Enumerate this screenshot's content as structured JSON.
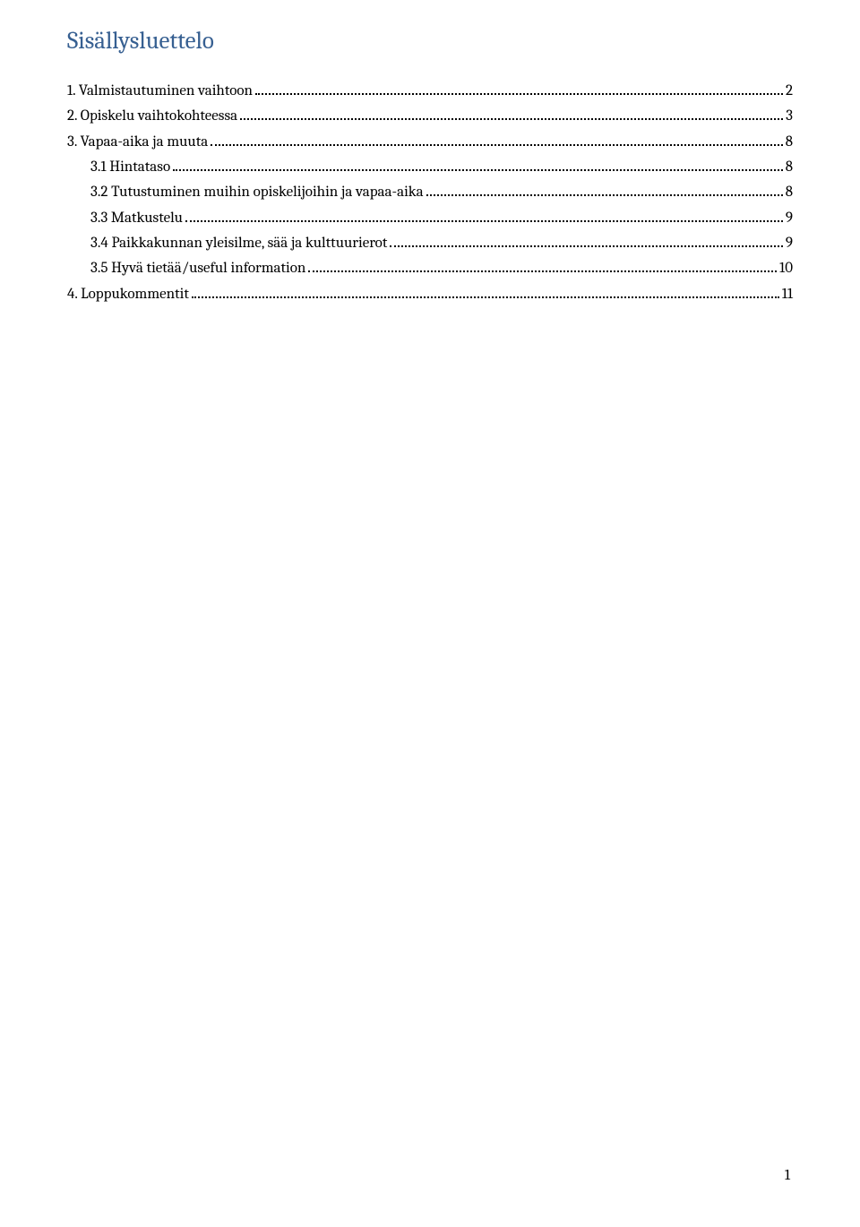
{
  "title": "Sisällysluettelo",
  "toc": [
    {
      "label": "1. Valmistautuminen vaihtoon",
      "page": "2",
      "indent": false
    },
    {
      "label": "2. Opiskelu vaihtokohteessa",
      "page": "3",
      "indent": false
    },
    {
      "label": "3. Vapaa-aika ja muuta",
      "page": "8",
      "indent": false
    },
    {
      "label": "3.1 Hintataso",
      "page": "8",
      "indent": true
    },
    {
      "label": "3.2 Tutustuminen muihin opiskelijoihin ja vapaa-aika",
      "page": "8",
      "indent": true
    },
    {
      "label": "3.3 Matkustelu",
      "page": "9",
      "indent": true
    },
    {
      "label": "3.4 Paikkakunnan yleisilme, sää ja kulttuurierot",
      "page": "9",
      "indent": true
    },
    {
      "label": "3.5 Hyvä tietää/useful information",
      "page": "10",
      "indent": true
    },
    {
      "label": "4. Loppukommentit",
      "page": "11",
      "indent": false
    }
  ],
  "pageNumber": "1",
  "colors": {
    "title": "#365f91",
    "text": "#000000",
    "background": "#ffffff"
  }
}
